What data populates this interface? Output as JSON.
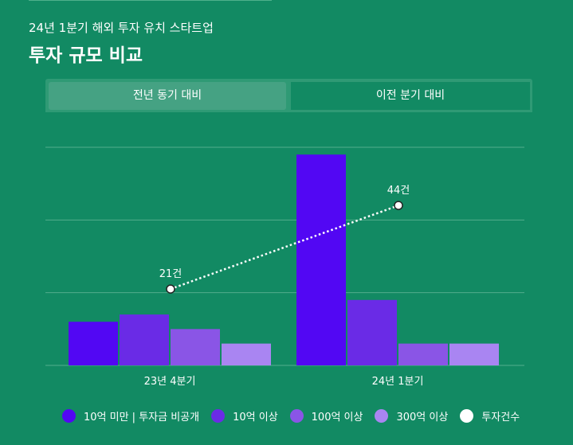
{
  "header": {
    "subtitle": "24년 1분기 해외 투자 유치 스타트업",
    "title": "투자 규모 비교"
  },
  "tabs": [
    {
      "label": "전년 동기 대비"
    },
    {
      "label": "이전 분기 대비"
    }
  ],
  "colors": {
    "background": "#128a63",
    "series": [
      "#5207f3",
      "#6a2be6",
      "#8a55e6",
      "#a985f2"
    ],
    "line": "#ffffff"
  },
  "chart_data": {
    "type": "bar",
    "categories": [
      "23년 4분기",
      "24년 1분기"
    ],
    "ylim": [
      0,
      30
    ],
    "series": [
      {
        "name": "10억 미만 | 투자금 비공개",
        "values": [
          6,
          29
        ]
      },
      {
        "name": "10억 이상",
        "values": [
          7,
          9
        ]
      },
      {
        "name": "100억 이상",
        "values": [
          5,
          3
        ]
      },
      {
        "name": "300억 이상",
        "values": [
          3,
          3
        ]
      }
    ],
    "line_series": {
      "name": "투자건수",
      "values": [
        21,
        44
      ],
      "labels": [
        "21건",
        "44건"
      ],
      "ylim": [
        0,
        60
      ]
    },
    "legend_position": "bottom",
    "grid": true
  }
}
